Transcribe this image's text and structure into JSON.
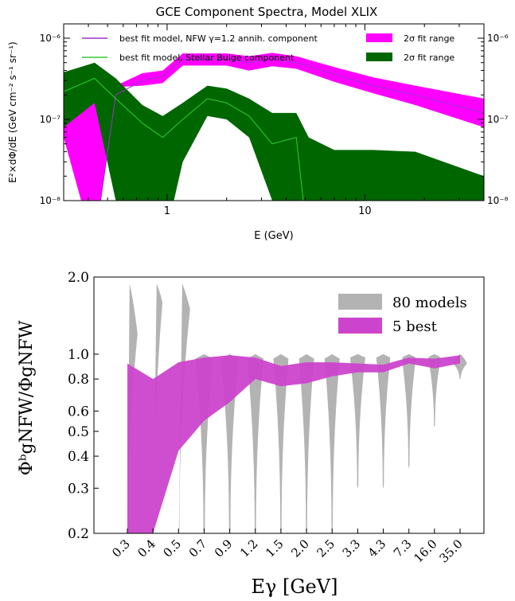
{
  "chart_data": [
    {
      "type": "area",
      "title": "GCE Component Spectra, Model XLIX",
      "xlabel": "E (GeV)",
      "ylabel": "E²×dΦ/dE (GeV cm⁻² s⁻¹ sr⁻¹)",
      "xscale": "log",
      "yscale": "log",
      "xlim": [
        0.3,
        40
      ],
      "ylim": [
        1e-08,
        1.5e-06
      ],
      "x_tick_labels": [
        "1",
        "10"
      ],
      "x_ticks": [
        1,
        10
      ],
      "y_tick_labels": [
        "10⁻⁸",
        "10⁻⁷",
        "10⁻⁶"
      ],
      "y_ticks": [
        1e-08,
        1e-07,
        1e-06
      ],
      "grid": false,
      "legend": {
        "placement": "top",
        "entries": [
          {
            "label": "best fit model, NFW γ=1.2 annih. component",
            "color": "#9933cc",
            "kind": "line"
          },
          {
            "label": "2σ fit range",
            "color": "#ff00ff",
            "kind": "fill"
          },
          {
            "label": "best fit model, Stellar Bulge component",
            "color": "#33cc33",
            "kind": "line"
          },
          {
            "label": "2σ fit range",
            "color": "#006600",
            "kind": "fill"
          }
        ]
      },
      "series": [
        {
          "name": "NFW γ=1.2 annih. component",
          "line_color": "#9933cc",
          "fill_color": "#ff00ff",
          "x": [
            0.3,
            0.43,
            0.55,
            0.75,
            0.95,
            1.2,
            1.6,
            2.0,
            2.6,
            3.4,
            4.5,
            7.0,
            11,
            18,
            40
          ],
          "best": [
            1e-09,
            3e-09,
            2e-07,
            3e-07,
            3.4e-07,
            5.5e-07,
            5.5e-07,
            5.5e-07,
            5e-07,
            5.6e-07,
            5e-07,
            3.6e-07,
            2.6e-07,
            2e-07,
            1.2e-07
          ],
          "lower": [
            6e-08,
            1e-09,
            2.5e-07,
            2.6e-07,
            2.8e-07,
            4.6e-07,
            4.6e-07,
            4.6e-07,
            4e-07,
            4.5e-07,
            4.2e-07,
            2.9e-07,
            2.1e-07,
            1.5e-07,
            8e-08
          ],
          "upper": [
            2.3e-07,
            2.2e-07,
            2.6e-07,
            3.7e-07,
            4e-07,
            6.5e-07,
            6.5e-07,
            6.5e-07,
            6e-07,
            6.6e-07,
            6e-07,
            4.4e-07,
            3.3e-07,
            2.6e-07,
            1.8e-07
          ]
        },
        {
          "name": "Stellar Bulge component",
          "line_color": "#33cc33",
          "fill_color": "#006600",
          "x": [
            0.3,
            0.43,
            0.55,
            0.75,
            0.95,
            1.2,
            1.6,
            2.0,
            2.6,
            3.4,
            4.5,
            5.2,
            7.0,
            11,
            18,
            40
          ],
          "best": [
            2.2e-07,
            3.2e-07,
            1.8e-07,
            9e-08,
            6e-08,
            1e-07,
            1.8e-07,
            1.6e-07,
            1.1e-07,
            5e-08,
            6e-08,
            1e-09,
            1e-09,
            1e-09,
            1e-09,
            1e-09
          ],
          "lower": [
            8e-08,
            1.6e-07,
            1e-08,
            1e-09,
            1e-09,
            3e-08,
            1.1e-07,
            1e-07,
            6e-08,
            1e-08,
            1e-09,
            1e-09,
            1e-09,
            1e-09,
            1e-09,
            1e-09
          ],
          "upper": [
            3.8e-07,
            5e-07,
            3.2e-07,
            1.5e-07,
            1.1e-07,
            1.6e-07,
            2.6e-07,
            2.4e-07,
            1.8e-07,
            1.2e-07,
            1.2e-07,
            6e-08,
            4.2e-08,
            4.2e-08,
            4e-08,
            2e-08
          ]
        }
      ]
    },
    {
      "type": "violin",
      "xlabel": "Eγ  [GeV]",
      "ylabel": "ΦᵇgNFW/ΦgNFW",
      "yscale": "log",
      "ylim": [
        0.2,
        2.0
      ],
      "y_tick_labels": [
        "0.2",
        "0.3",
        "0.4",
        "0.5",
        "0.6",
        "0.8",
        "1.0",
        "2.0"
      ],
      "y_ticks": [
        0.2,
        0.3,
        0.4,
        0.5,
        0.6,
        0.8,
        1.0,
        2.0
      ],
      "categories": [
        "0.3",
        "0.4",
        "0.5",
        "0.7",
        "0.9",
        "1.2",
        "1.5",
        "2.0",
        "2.5",
        "3.3",
        "4.3",
        "7.3",
        "16.0",
        "35.0"
      ],
      "grid": false,
      "legend": {
        "placement": "top-right",
        "entries": [
          {
            "label": "80 models",
            "color": "#b3b3b3"
          },
          {
            "label": "5 best",
            "color": "#cc44cc"
          }
        ]
      },
      "violin_colour": "#b3b3b3",
      "band_colour": "#cc44cc",
      "violins": [
        {
          "min": 0.2,
          "max": 2.0,
          "mode": 1.2,
          "peak": 0.8
        },
        {
          "min": 0.2,
          "max": 2.0,
          "mode": 1.6,
          "peak": 0.75
        },
        {
          "min": 0.2,
          "max": 2.0,
          "mode": 1.5,
          "peak": 0.9
        },
        {
          "min": 0.2,
          "max": 1.0,
          "mode": 0.97,
          "peak": 0.7
        },
        {
          "min": 0.2,
          "max": 1.0,
          "mode": 0.97,
          "peak": 0.7
        },
        {
          "min": 0.2,
          "max": 1.0,
          "mode": 0.97,
          "peak": 0.65
        },
        {
          "min": 0.2,
          "max": 1.0,
          "mode": 0.97,
          "peak": 0.6
        },
        {
          "min": 0.2,
          "max": 1.0,
          "mode": 0.97,
          "peak": 0.6
        },
        {
          "min": 0.2,
          "max": 1.0,
          "mode": 0.97,
          "peak": 0.6
        },
        {
          "min": 0.3,
          "max": 1.0,
          "mode": 0.97,
          "peak": 0.6
        },
        {
          "min": 0.3,
          "max": 1.0,
          "mode": 0.97,
          "peak": 0.55
        },
        {
          "min": 0.36,
          "max": 1.0,
          "mode": 0.97,
          "peak": 0.55
        },
        {
          "min": 0.52,
          "max": 1.0,
          "mode": 0.97,
          "peak": 0.5
        },
        {
          "min": 0.8,
          "max": 1.0,
          "mode": 0.92,
          "peak": 0.55
        }
      ],
      "best_band": {
        "name": "5 best",
        "upper": [
          0.92,
          0.8,
          0.93,
          0.97,
          0.99,
          0.97,
          0.9,
          0.93,
          0.93,
          0.92,
          0.91,
          0.97,
          0.96,
          0.99
        ],
        "lower": [
          0.2,
          0.2,
          0.42,
          0.55,
          0.65,
          0.8,
          0.75,
          0.77,
          0.82,
          0.85,
          0.85,
          0.92,
          0.88,
          0.92
        ]
      }
    }
  ]
}
